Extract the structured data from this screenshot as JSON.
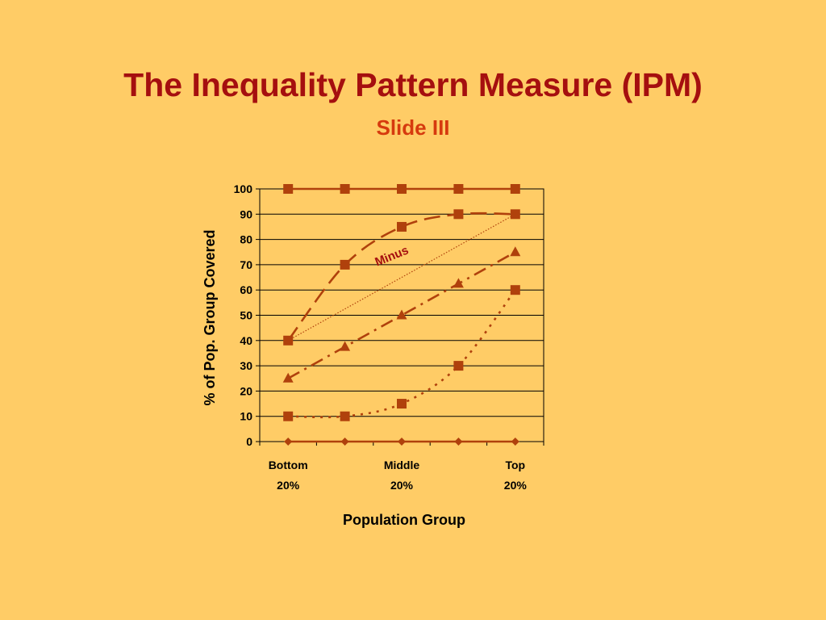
{
  "slide": {
    "title": "The Inequality Pattern Measure (IPM)",
    "subtitle": "Slide III"
  },
  "colors": {
    "background": "#FFCC66",
    "title": "#A50F0F",
    "subtitle": "#D63A0E",
    "series": "#B0410C",
    "annotation": "#A50F0F"
  },
  "chart_data": {
    "type": "line",
    "x": [
      1,
      2,
      3,
      4,
      5
    ],
    "xtick_labels": [
      {
        "x": 1,
        "line1": "Bottom",
        "line2": "20%"
      },
      {
        "x": 3,
        "line1": "Middle",
        "line2": "20%"
      },
      {
        "x": 5,
        "line1": "Top",
        "line2": "20%"
      }
    ],
    "xlabel": "Population Group",
    "ylabel": "% of Pop. Group Covered",
    "ylim": [
      0,
      100
    ],
    "yticks": [
      0,
      10,
      20,
      30,
      40,
      50,
      60,
      70,
      80,
      90,
      100
    ],
    "grid": true,
    "series": [
      {
        "values": [
          100,
          100,
          100,
          100,
          100
        ],
        "marker": "square",
        "line": "solid"
      },
      {
        "values": [
          40,
          70,
          85,
          90,
          90
        ],
        "marker": "square",
        "line": "longdash"
      },
      {
        "values": [
          25,
          37.5,
          50,
          62.5,
          75
        ],
        "marker": "triangle",
        "line": "dashdot"
      },
      {
        "values": [
          10,
          10,
          15,
          30,
          60
        ],
        "marker": "square",
        "line": "dotted"
      },
      {
        "values": [
          0,
          0,
          0,
          0,
          0
        ],
        "marker": "diamond",
        "line": "solid"
      }
    ],
    "reference_line": {
      "from": [
        1,
        40
      ],
      "to": [
        5,
        90
      ],
      "line": "fine-dotted"
    },
    "annotations": [
      {
        "text": "Minus",
        "x": 2.85,
        "y": 72,
        "rotation": -22
      }
    ]
  }
}
